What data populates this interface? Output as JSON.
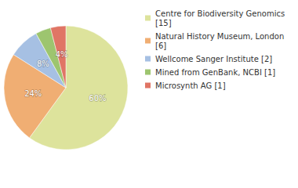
{
  "chart_data": {
    "type": "pie",
    "categories": [
      "Centre for Biodiversity Genomics [15]",
      "Natural History Museum, London [6]",
      "Wellcome Sanger Institute [2]",
      "Mined from GenBank, NCBI [1]",
      "Microsynth AG [1]"
    ],
    "values": [
      60,
      24,
      8,
      4,
      4
    ],
    "value_labels": [
      "60%",
      "24%",
      "8%",
      "4%",
      "4%"
    ],
    "colors": [
      "#dde39c",
      "#f0ae73",
      "#a6c0e3",
      "#9dc56f",
      "#e07565"
    ],
    "data_labels": true,
    "legend": "top-right"
  }
}
